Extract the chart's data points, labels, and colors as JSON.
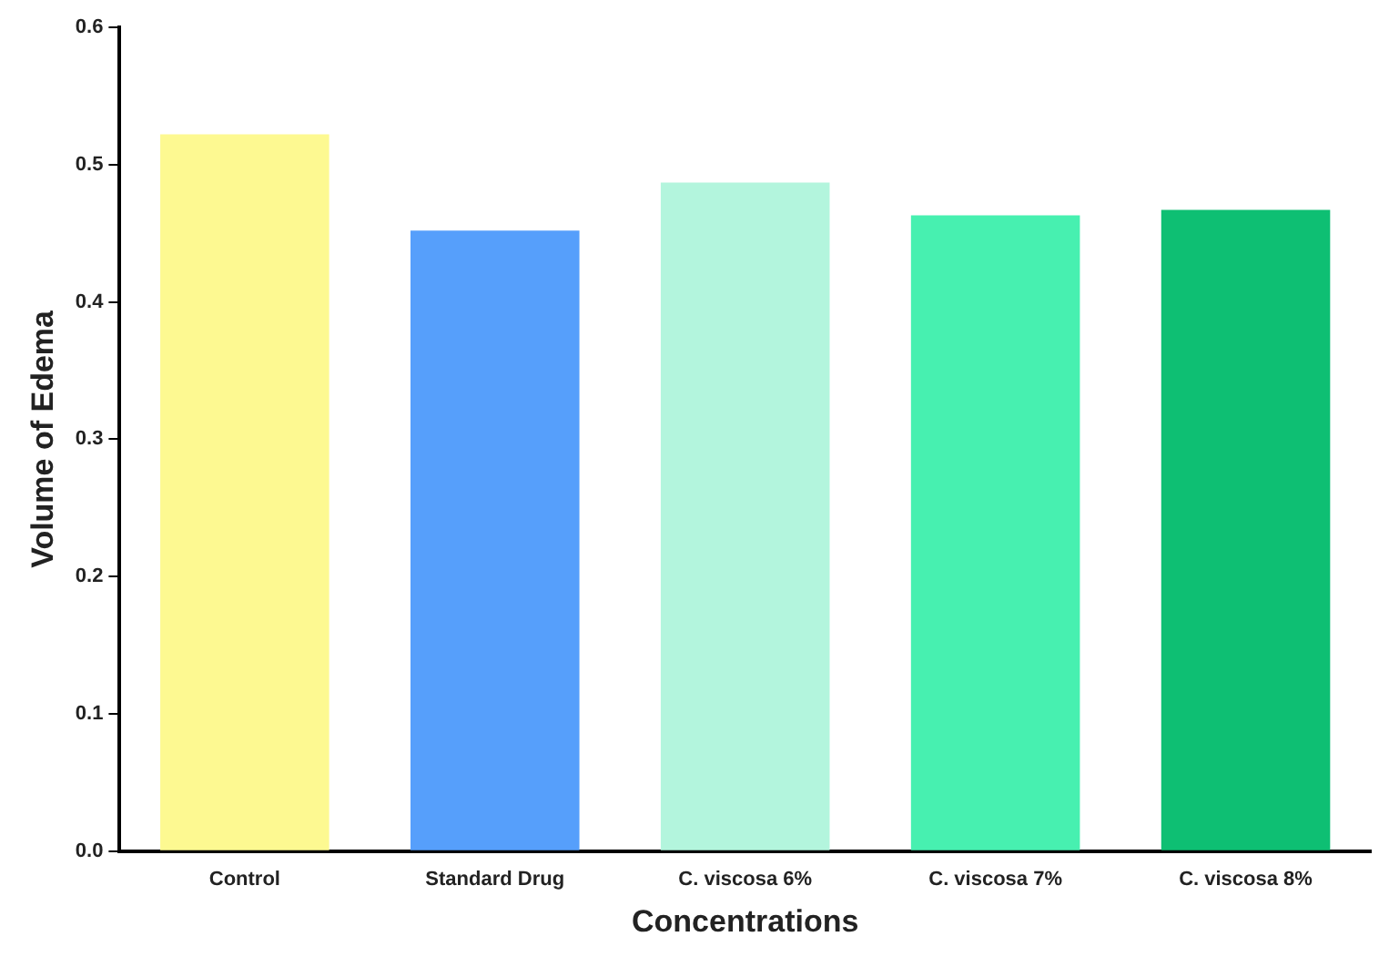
{
  "chart_data": {
    "type": "bar",
    "xlabel": "Concentrations",
    "ylabel": "Volume of Edema",
    "categories": [
      "Control",
      "Standard Drug",
      "C. viscosa 6%",
      "C. viscosa 7%",
      "C. viscosa 8%"
    ],
    "values": [
      0.522,
      0.452,
      0.487,
      0.463,
      0.467
    ],
    "colors": [
      "#fdf991",
      "#569ffb",
      "#b3f5dd",
      "#47f0b0",
      "#0ebf73"
    ],
    "ylim": [
      0,
      0.6
    ],
    "yticks": [
      {
        "value": 0,
        "label": "0.0"
      },
      0.1,
      0.2,
      0.3,
      0.4,
      0.5,
      0.6
    ],
    "grid": false,
    "legend": false
  }
}
